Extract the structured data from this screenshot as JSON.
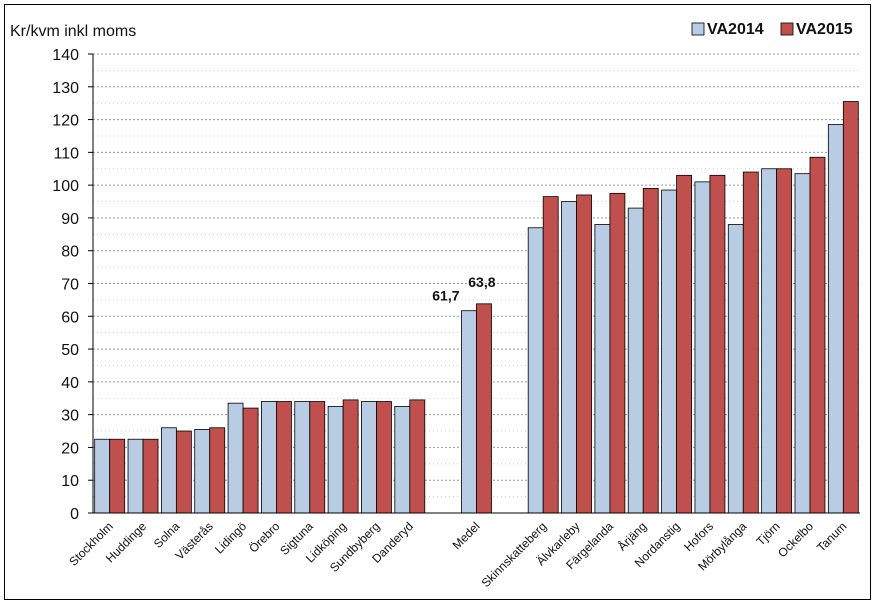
{
  "chart_data": {
    "type": "bar",
    "ylabel": "Kr/kvm inkl moms",
    "ylim": [
      0,
      140
    ],
    "yticks": [
      0,
      10,
      20,
      30,
      40,
      50,
      60,
      70,
      80,
      90,
      100,
      110,
      120,
      130,
      140
    ],
    "grid": true,
    "legend_position": "top-right",
    "categories": [
      "Stockholm",
      "Huddinge",
      "Solna",
      "Västerås",
      "Lidingö",
      "Örebro",
      "Sigtuna",
      "Lidköping",
      "Sundbyberg",
      "Danderyd",
      "",
      "Medel",
      "",
      "Skinnskatteberg",
      "Älvkarleby",
      "Färgelanda",
      "Årjäng",
      "Nordanstig",
      "Hofors",
      "Mörbylånga",
      "Tjörn",
      "Ockelbo",
      "Tanum"
    ],
    "series": [
      {
        "name": "VA2014",
        "color": "#b8cce4",
        "values": [
          22.5,
          22.5,
          26,
          25.5,
          33.5,
          34,
          34,
          32.5,
          34,
          32.5,
          null,
          61.7,
          null,
          87,
          95,
          88,
          93,
          98.5,
          101,
          88,
          105,
          103.5,
          118.5
        ]
      },
      {
        "name": "VA2015",
        "color": "#c0504d",
        "values": [
          22.5,
          22.5,
          25,
          26,
          32,
          34,
          34,
          34.5,
          34,
          34.5,
          null,
          63.8,
          null,
          96.5,
          97,
          97.5,
          99,
          103,
          103,
          104,
          105,
          108.5,
          125.5
        ]
      }
    ],
    "data_labels": [
      {
        "category": "Medel",
        "series": "VA2014",
        "text": "61,7"
      },
      {
        "category": "Medel",
        "series": "VA2015",
        "text": "63,8"
      }
    ]
  }
}
